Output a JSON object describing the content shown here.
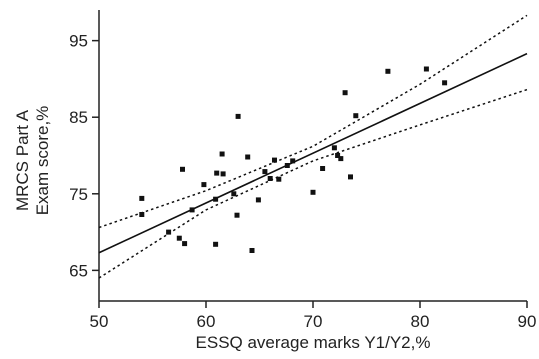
{
  "chart_data": {
    "type": "scatter",
    "title": "",
    "xlabel": "ESSQ average marks Y1/Y2,%",
    "ylabel_lines": [
      "MRCS Part A",
      "Exam score,%"
    ],
    "xlim": [
      50,
      90
    ],
    "ylim": [
      61,
      99
    ],
    "x_ticks": [
      50,
      60,
      70,
      80,
      90
    ],
    "y_ticks": [
      65,
      75,
      85,
      95
    ],
    "grid": false,
    "legend": "none",
    "points": [
      {
        "x": 54.0,
        "y": 74.4
      },
      {
        "x": 54.0,
        "y": 72.3
      },
      {
        "x": 56.5,
        "y": 70.0
      },
      {
        "x": 57.5,
        "y": 69.2
      },
      {
        "x": 57.8,
        "y": 78.2
      },
      {
        "x": 58.0,
        "y": 68.5
      },
      {
        "x": 58.7,
        "y": 72.9
      },
      {
        "x": 59.8,
        "y": 76.2
      },
      {
        "x": 60.9,
        "y": 68.4
      },
      {
        "x": 61.0,
        "y": 77.7
      },
      {
        "x": 60.9,
        "y": 74.3
      },
      {
        "x": 61.5,
        "y": 80.2
      },
      {
        "x": 61.6,
        "y": 77.6
      },
      {
        "x": 62.6,
        "y": 75.0
      },
      {
        "x": 62.9,
        "y": 72.2
      },
      {
        "x": 63.0,
        "y": 85.1
      },
      {
        "x": 63.9,
        "y": 79.8
      },
      {
        "x": 64.3,
        "y": 67.6
      },
      {
        "x": 64.9,
        "y": 74.2
      },
      {
        "x": 65.5,
        "y": 77.9
      },
      {
        "x": 66.0,
        "y": 77.0
      },
      {
        "x": 66.4,
        "y": 79.4
      },
      {
        "x": 66.8,
        "y": 76.9
      },
      {
        "x": 67.6,
        "y": 78.7
      },
      {
        "x": 68.1,
        "y": 79.3
      },
      {
        "x": 70.0,
        "y": 75.2
      },
      {
        "x": 70.9,
        "y": 78.3
      },
      {
        "x": 72.0,
        "y": 81.0
      },
      {
        "x": 72.3,
        "y": 80.0
      },
      {
        "x": 72.6,
        "y": 79.6
      },
      {
        "x": 73.0,
        "y": 88.2
      },
      {
        "x": 73.5,
        "y": 77.2
      },
      {
        "x": 74.0,
        "y": 85.2
      },
      {
        "x": 77.0,
        "y": 91.0
      },
      {
        "x": 80.6,
        "y": 91.3
      },
      {
        "x": 82.3,
        "y": 89.5
      }
    ],
    "regression_line": {
      "x": [
        50,
        90
      ],
      "y": [
        67.3,
        93.3
      ]
    },
    "confidence_upper": {
      "x": [
        50,
        60,
        70,
        80,
        90
      ],
      "y": [
        70.6,
        75.4,
        81.2,
        89.3,
        98.3
      ]
    },
    "confidence_lower": {
      "x": [
        50,
        60,
        70,
        80,
        90
      ],
      "y": [
        64.0,
        72.9,
        79.3,
        84.0,
        88.6
      ]
    },
    "colors": {
      "points": "#111111",
      "line": "#111111",
      "bands": "#111111",
      "axis": "#222222"
    }
  }
}
